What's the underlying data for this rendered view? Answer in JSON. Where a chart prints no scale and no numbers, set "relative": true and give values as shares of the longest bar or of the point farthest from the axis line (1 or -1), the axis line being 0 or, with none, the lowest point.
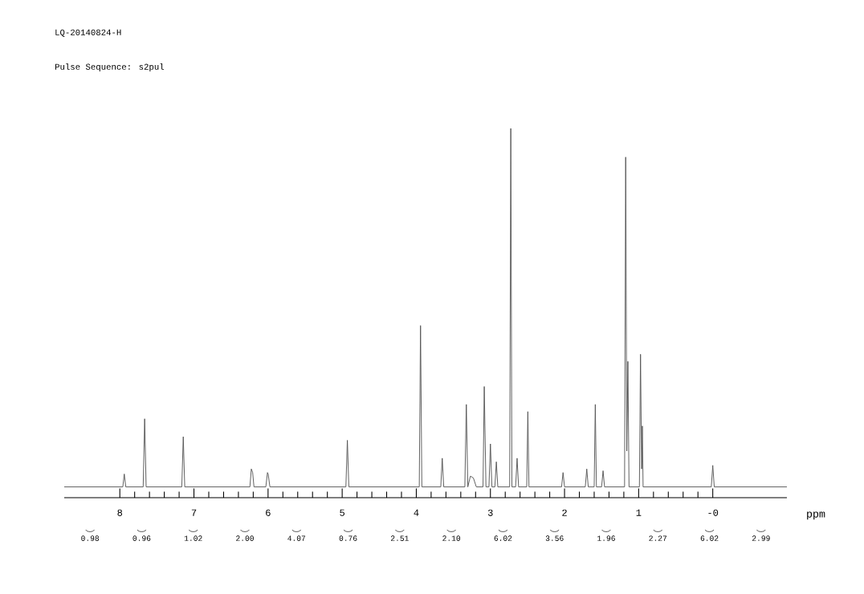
{
  "chart_data": {
    "type": "line",
    "title": "LQ-20140824-H",
    "subtitle": "Pulse Sequence: s2pul",
    "xlabel": "ppm",
    "relative": true,
    "color": "#555555",
    "tick_labels": "x",
    "grid": false,
    "xlim": [
      8.75,
      -1.0
    ],
    "xticks": [
      8,
      7,
      6,
      5,
      4,
      3,
      2,
      1,
      {
        "value": 0,
        "label": "-0"
      }
    ],
    "x": [
      8.75,
      7.96,
      7.94,
      7.92,
      7.685,
      7.665,
      7.645,
      7.164,
      7.144,
      7.124,
      6.245,
      6.226,
      6.208,
      6.19,
      6.03,
      6.008,
      5.998,
      5.975,
      4.95,
      4.93,
      4.91,
      3.96,
      3.943,
      3.925,
      3.67,
      3.65,
      3.63,
      3.345,
      3.325,
      3.305,
      3.27,
      3.23,
      3.19,
      3.1,
      3.083,
      3.06,
      3.02,
      3.0,
      2.98,
      2.94,
      2.92,
      2.9,
      2.74,
      2.725,
      2.71,
      2.66,
      2.64,
      2.62,
      2.51,
      2.495,
      2.48,
      2.04,
      2.02,
      2.0,
      1.72,
      1.7,
      1.68,
      1.6,
      1.585,
      1.57,
      1.5,
      1.48,
      1.46,
      1.19,
      1.175,
      1.16,
      1.145,
      1.13,
      0.99,
      0.975,
      0.96,
      0.95,
      0.94,
      0.02,
      0.0,
      -0.02,
      -1.0
    ],
    "values": [
      0,
      0,
      0.036,
      0,
      0,
      0.19,
      0,
      0,
      0.14,
      0,
      0,
      0.05,
      0.04,
      0,
      0,
      0.04,
      0.035,
      0,
      0,
      0.13,
      0,
      0,
      0.45,
      0,
      0,
      0.08,
      0,
      0,
      0.23,
      0,
      0.03,
      0.025,
      0,
      0,
      0.28,
      0,
      0,
      0.12,
      0,
      0,
      0.07,
      0,
      0,
      1.0,
      0,
      0,
      0.08,
      0,
      0,
      0.21,
      0,
      0,
      0.04,
      0,
      0,
      0.05,
      0,
      0,
      0.23,
      0,
      0,
      0.045,
      0,
      0,
      0.92,
      0.1,
      0.35,
      0,
      0,
      0.37,
      0.05,
      0.17,
      0,
      0,
      0.06,
      0,
      0
    ],
    "annotations": [
      "0.98",
      "0.96",
      "1.02",
      "2.00",
      "4.07",
      "0.76",
      "2.51",
      "2.10",
      "6.02",
      "3.56",
      "1.96",
      "2.27",
      "6.02",
      "2.99"
    ]
  }
}
